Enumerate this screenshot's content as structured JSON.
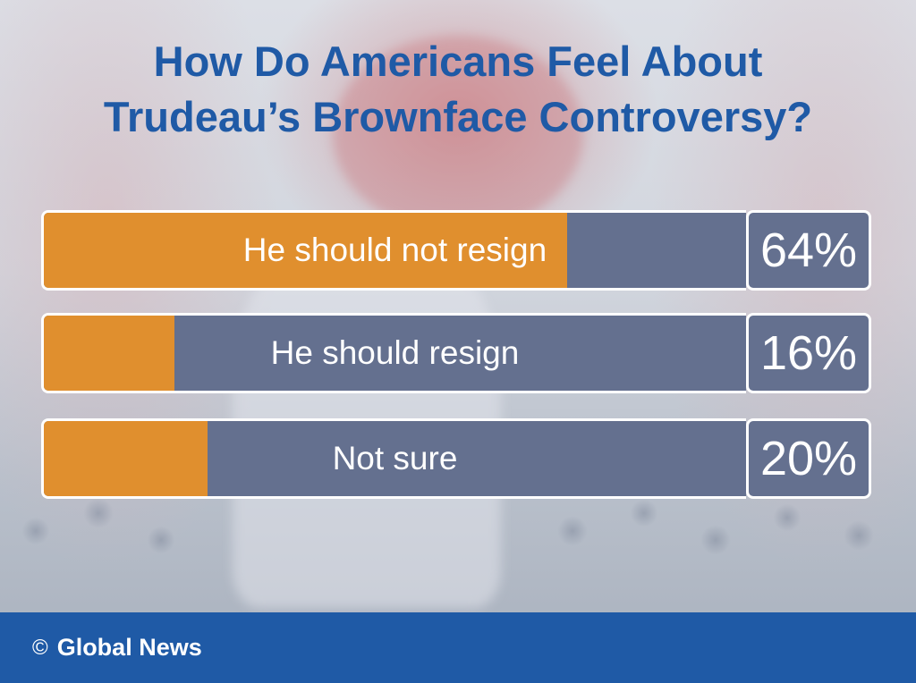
{
  "title_line1": "How Do Americans Feel About",
  "title_line2": "Trudeau’s Brownface Controversy?",
  "chart_data": {
    "type": "bar",
    "orientation": "horizontal",
    "categories": [
      "He should not resign",
      "He should resign",
      "Not sure"
    ],
    "values": [
      64,
      16,
      20
    ],
    "value_labels": [
      "64%",
      "16%",
      "20%"
    ],
    "ylim": [
      0,
      100
    ],
    "colors": {
      "fill": "#e08f2e",
      "track": "#64708f"
    }
  },
  "footer": {
    "copyright_icon": "copyright-icon",
    "source": "Global News"
  },
  "colors": {
    "title": "#1f5aa6",
    "footer_bg": "#1f5aa6"
  }
}
